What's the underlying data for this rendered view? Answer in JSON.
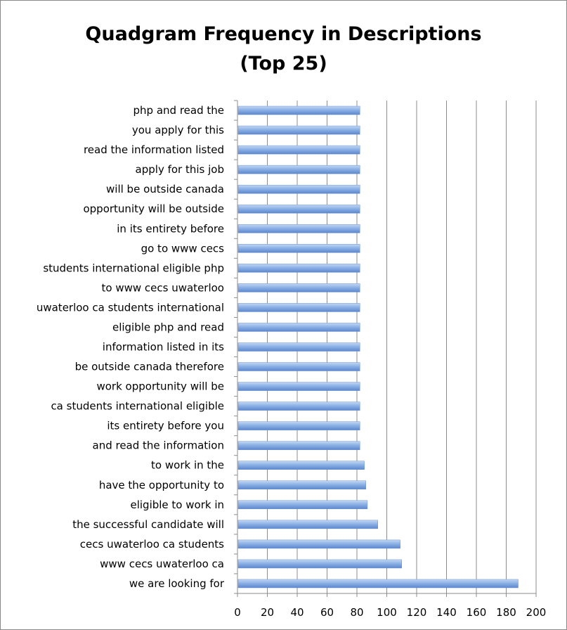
{
  "chart_data": {
    "type": "bar",
    "orientation": "horizontal",
    "title_lines": [
      "Quadgram Frequency in Descriptions",
      "(Top 25)"
    ],
    "xlabel": "",
    "ylabel": "",
    "xlim": [
      0,
      200
    ],
    "x_ticks": [
      0,
      20,
      40,
      60,
      80,
      100,
      120,
      140,
      160,
      180,
      200
    ],
    "grid": "vertical",
    "legend": "none",
    "bar_color": "#7ea6e0",
    "categories": [
      "php and read the",
      "you apply for this",
      "read the information listed",
      "apply for this job",
      "will be outside canada",
      "opportunity will be outside",
      "in its entirety before",
      "go to www cecs",
      "students international eligible php",
      "to www cecs uwaterloo",
      "uwaterloo ca students international",
      "eligible php and read",
      "information listed in its",
      "be outside canada therefore",
      "work opportunity will be",
      "ca students international eligible",
      "its entirety before you",
      "and read the information",
      "to work in the",
      "have the opportunity to",
      "eligible to work in",
      "the successful candidate will",
      "cecs uwaterloo ca students",
      "www cecs uwaterloo ca",
      "we are looking for"
    ],
    "values": [
      82,
      82,
      82,
      82,
      82,
      82,
      82,
      82,
      82,
      82,
      82,
      82,
      82,
      82,
      82,
      82,
      82,
      82,
      85,
      86,
      87,
      94,
      109,
      110,
      188
    ]
  }
}
